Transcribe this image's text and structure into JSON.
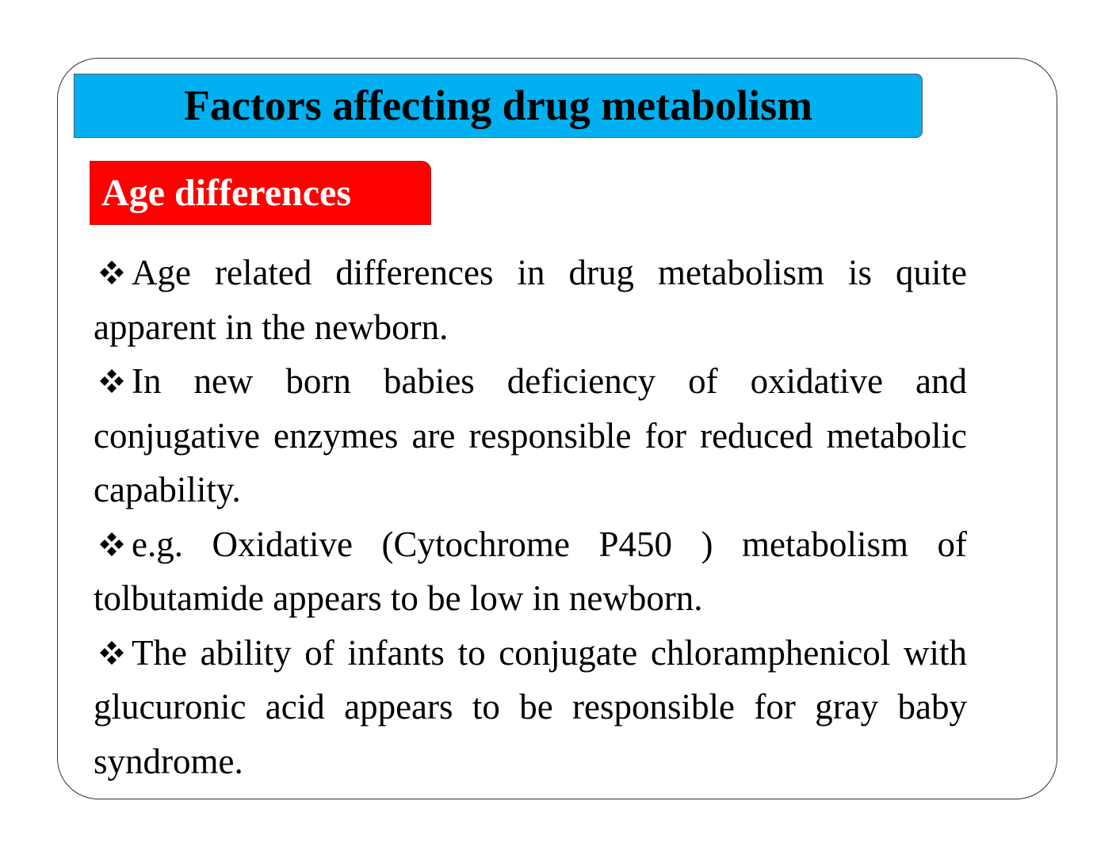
{
  "header": {
    "title": "Factors affecting drug metabolism",
    "subtitle": "Age differences"
  },
  "bullets": [
    "Age related differences in drug metabolism is quite apparent in the newborn.",
    "In new born babies deficiency of oxidative and conjugative enzymes are responsible for reduced metabolic capability.",
    "e.g. Oxidative (Cytochrome P450 ) metabolism of tolbutamide appears to be low in newborn.",
    "The ability of infants to conjugate chloramphenicol with glucuronic acid appears to be responsible for gray baby syndrome."
  ]
}
